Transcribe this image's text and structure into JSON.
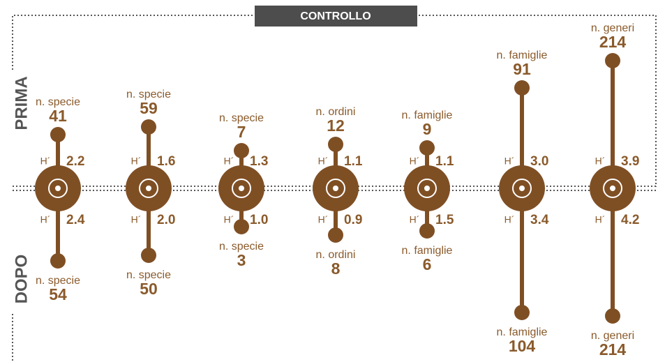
{
  "header": {
    "title": "CONTROLLO"
  },
  "side_labels": {
    "before": "PRIMA",
    "after": "DOPO"
  },
  "h_label": "H´",
  "columns": [
    {
      "before": {
        "label": "n. specie",
        "value": 41,
        "h": "2.2"
      },
      "after": {
        "label": "n. specie",
        "value": 54,
        "h": "2.4"
      }
    },
    {
      "before": {
        "label": "n. specie",
        "value": 59,
        "h": "1.6"
      },
      "after": {
        "label": "n. specie",
        "value": 50,
        "h": "2.0"
      }
    },
    {
      "before": {
        "label": "n. specie",
        "value": 7,
        "h": "1.3"
      },
      "after": {
        "label": "n. specie",
        "value": 3,
        "h": "1.0"
      }
    },
    {
      "before": {
        "label": "n. ordini",
        "value": 12,
        "h": "1.1"
      },
      "after": {
        "label": "n. ordini",
        "value": 8,
        "h": "0.9"
      }
    },
    {
      "before": {
        "label": "n. famiglie",
        "value": 9,
        "h": "1.1"
      },
      "after": {
        "label": "n. famiglie",
        "value": 6,
        "h": "1.5"
      }
    },
    {
      "before": {
        "label": "n. famiglie",
        "value": 91,
        "h": "3.0"
      },
      "after": {
        "label": "n. famiglie",
        "value": 104,
        "h": "3.4"
      }
    },
    {
      "before": {
        "label": "n. generi",
        "value": 214,
        "h": "3.9"
      },
      "after": {
        "label": "n. generi",
        "value": 214,
        "h": "4.2"
      }
    }
  ]
}
